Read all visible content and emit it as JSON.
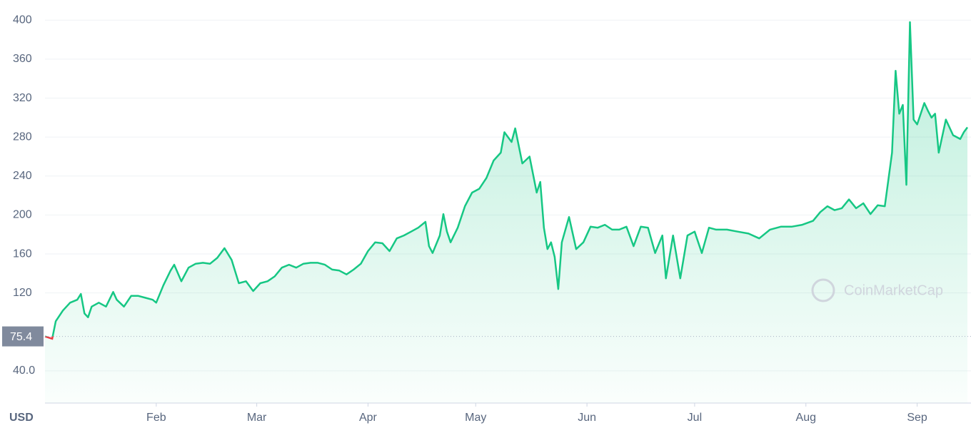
{
  "chart_data": {
    "type": "area",
    "currency": "USD",
    "watermark": "CoinMarketCap",
    "color": "#16c784",
    "down_color": "#ea3943",
    "baseline": 75.4,
    "x": [
      0,
      2,
      3,
      5,
      7,
      9,
      10,
      11,
      12,
      13,
      15,
      17,
      19,
      20,
      22,
      24,
      26,
      28,
      30,
      31,
      33,
      35,
      36,
      38,
      40,
      42,
      44,
      46,
      48,
      50,
      52,
      54,
      56,
      58,
      60,
      62,
      64,
      66,
      68,
      70,
      72,
      74,
      76,
      78,
      80,
      82,
      84,
      86,
      88,
      90,
      92,
      94,
      96,
      98,
      100,
      102,
      104,
      106,
      107,
      108,
      110,
      111,
      112,
      113,
      115,
      117,
      119,
      121,
      123,
      125,
      127,
      128,
      130,
      131,
      133,
      135,
      137,
      138,
      139,
      140,
      141,
      142,
      143,
      144,
      146,
      148,
      150,
      152,
      154,
      156,
      158,
      160,
      162,
      164,
      166,
      168,
      170,
      172,
      173,
      175,
      177,
      179,
      181,
      183,
      185,
      187,
      190,
      193,
      196,
      199,
      202,
      205,
      208,
      211,
      214,
      216,
      218,
      220,
      222,
      224,
      226,
      228,
      230,
      232,
      234,
      236,
      237,
      238,
      239,
      240,
      241,
      242,
      243,
      244,
      245,
      246,
      247,
      248,
      249,
      251,
      253,
      255,
      256,
      257
    ],
    "values": [
      75.4,
      73,
      91,
      102,
      110,
      113,
      119,
      99,
      95,
      106,
      110,
      106,
      121,
      113,
      106,
      117,
      117,
      115,
      113,
      110,
      128,
      143,
      149,
      132,
      146,
      150,
      151,
      150,
      156,
      166,
      154,
      130,
      132,
      122,
      130,
      132,
      137,
      146,
      149,
      146,
      150,
      151,
      151,
      149,
      144,
      143,
      139,
      144,
      150,
      163,
      172,
      171,
      163,
      176,
      179,
      183,
      187,
      193,
      168,
      161,
      179,
      201,
      183,
      172,
      187,
      209,
      223,
      227,
      238,
      256,
      264,
      285,
      275,
      289,
      253,
      260,
      223,
      234,
      187,
      165,
      172,
      157,
      124,
      172,
      198,
      165,
      172,
      188,
      187,
      190,
      185,
      185,
      188,
      168,
      188,
      187,
      161,
      179,
      135,
      179,
      135,
      179,
      183,
      161,
      187,
      185,
      185,
      183,
      181,
      176,
      185,
      188,
      188,
      190,
      194,
      203,
      209,
      205,
      207,
      216,
      207,
      212,
      201,
      210,
      209,
      264,
      348,
      304,
      313,
      231,
      398,
      298,
      293,
      304,
      315,
      307,
      300,
      304,
      264,
      298,
      282,
      278,
      285,
      290
    ],
    "xlim": [
      0,
      258
    ],
    "ylim": [
      7,
      420
    ],
    "yticks": [
      {
        "value": 40,
        "label": "40.0"
      },
      120,
      160,
      200,
      240,
      280,
      320,
      360,
      400
    ],
    "xticks": [
      {
        "value": 31,
        "label": "Feb"
      },
      {
        "value": 59,
        "label": "Mar"
      },
      {
        "value": 90,
        "label": "Apr"
      },
      {
        "value": 120,
        "label": "May"
      },
      {
        "value": 151,
        "label": "Jun"
      },
      {
        "value": 181,
        "label": "Jul"
      },
      {
        "value": 212,
        "label": "Aug"
      },
      {
        "value": 243,
        "label": "Sep"
      }
    ],
    "grid": true
  }
}
